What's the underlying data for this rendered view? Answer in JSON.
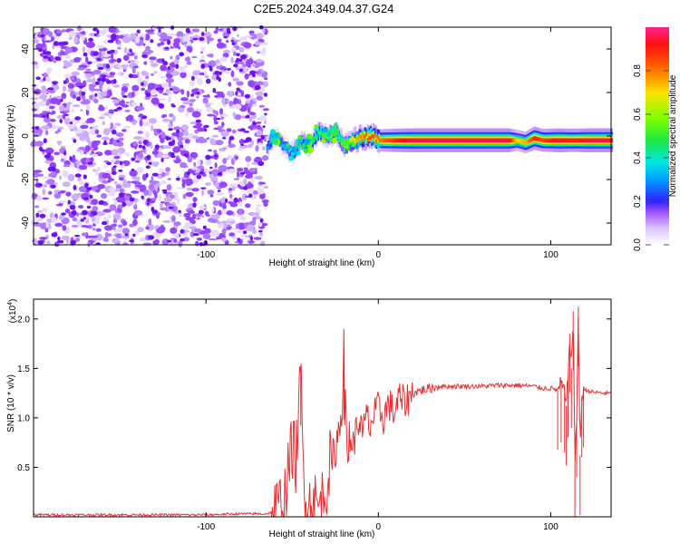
{
  "title": "C2E5.2024.349.04.37.G24",
  "chart_data": [
    {
      "type": "heatmap",
      "xlabel": "Height of straight line (km)",
      "ylabel": "Frequency (Hz)",
      "xlim": [
        -200,
        135
      ],
      "ylim": [
        -50,
        50
      ],
      "xticks": [
        -100,
        0,
        100
      ],
      "yticks": [
        -40,
        -20,
        0,
        20,
        40
      ],
      "colorbar": {
        "label": "Normalized spectral amplitude",
        "range": [
          0,
          1
        ],
        "ticks": [
          0.0,
          0.2,
          0.4,
          0.6,
          0.8
        ],
        "tick_labels": [
          "0.0",
          "0.2",
          "0.4",
          "0.6",
          "0.8"
        ]
      },
      "noise_region": {
        "x": [
          -200,
          -65
        ],
        "y": [
          -50,
          50
        ],
        "amplitude": 0.1
      },
      "signal_trace": {
        "x": [
          -65,
          -60,
          -55,
          -50,
          -45,
          -40,
          -35,
          -30,
          -25,
          -20,
          -15,
          -10,
          -5,
          0,
          10,
          20,
          40,
          60,
          75,
          80,
          85,
          90,
          95,
          100,
          105,
          110,
          115,
          120,
          135
        ],
        "y": [
          -5,
          0,
          -5,
          -8,
          -3,
          -4,
          2,
          0,
          2,
          -5,
          -2,
          -1,
          0,
          -2,
          -2,
          -2,
          -2,
          -2,
          -2,
          -2,
          -3,
          -1,
          -2,
          -2,
          -2,
          -2,
          -2,
          -2,
          -2
        ],
        "amplitude": [
          0.3,
          0.3,
          0.35,
          0.4,
          0.45,
          0.45,
          0.5,
          0.55,
          0.55,
          0.6,
          0.7,
          0.8,
          0.85,
          0.8,
          0.9,
          0.95,
          0.95,
          0.95,
          0.95,
          0.7,
          0.75,
          0.9,
          0.85,
          0.9,
          0.95,
          0.9,
          0.9,
          0.95,
          0.95
        ]
      }
    },
    {
      "type": "line",
      "xlabel": "Height of straight line (km)",
      "ylabel": "SNR (10 * v/v)",
      "multiplier": "(x10",
      "multiplier_exp": "4",
      "multiplier_close": ")",
      "xlim": [
        -200,
        135
      ],
      "ylim": [
        0,
        2.2
      ],
      "xticks": [
        -100,
        0,
        100
      ],
      "yticks": [
        0.5,
        1.0,
        1.5,
        2.0
      ],
      "ytick_labels": [
        "0.5",
        "1.0",
        "1.5",
        "2.0"
      ],
      "series": [
        {
          "color": "#e83030",
          "x": [
            -200,
            -180,
            -150,
            -120,
            -100,
            -80,
            -70,
            -65,
            -60,
            -55,
            -52,
            -50,
            -48,
            -46,
            -45,
            -44,
            -43,
            -42,
            -40,
            -38,
            -35,
            -32,
            -30,
            -28,
            -26,
            -25,
            -24,
            -22,
            -20,
            -19,
            -18,
            -17,
            -16,
            -15,
            -13,
            -11,
            -9,
            -7,
            -5,
            -3,
            0,
            3,
            6,
            9,
            12,
            15,
            20,
            25,
            30,
            35,
            40,
            50,
            60,
            70,
            80,
            90,
            95,
            100,
            104,
            106,
            108,
            109,
            110,
            111,
            112,
            113,
            114,
            115,
            116,
            117,
            118,
            119,
            120,
            125,
            130,
            135
          ],
          "y": [
            0.02,
            0.02,
            0.02,
            0.02,
            0.02,
            0.03,
            0.03,
            0.03,
            0.05,
            0.15,
            0.45,
            0.75,
            0.55,
            1.05,
            1.52,
            0.7,
            0.35,
            0.25,
            0.12,
            0.18,
            0.08,
            0.2,
            0.35,
            0.55,
            0.45,
            0.85,
            0.7,
            1.05,
            1.58,
            0.9,
            0.6,
            0.75,
            0.95,
            0.7,
            0.85,
            1.0,
            0.8,
            1.05,
            0.9,
            1.0,
            1.1,
            1.0,
            1.15,
            1.05,
            1.2,
            1.15,
            1.25,
            1.28,
            1.3,
            1.32,
            1.32,
            1.32,
            1.32,
            1.33,
            1.33,
            1.32,
            1.3,
            1.3,
            1.28,
            1.35,
            1.25,
            1.12,
            1.4,
            1.85,
            1.5,
            2.08,
            0.55,
            1.0,
            2.12,
            0.62,
            1.2,
            1.3,
            1.28,
            1.26,
            1.25,
            1.25
          ]
        }
      ]
    }
  ]
}
